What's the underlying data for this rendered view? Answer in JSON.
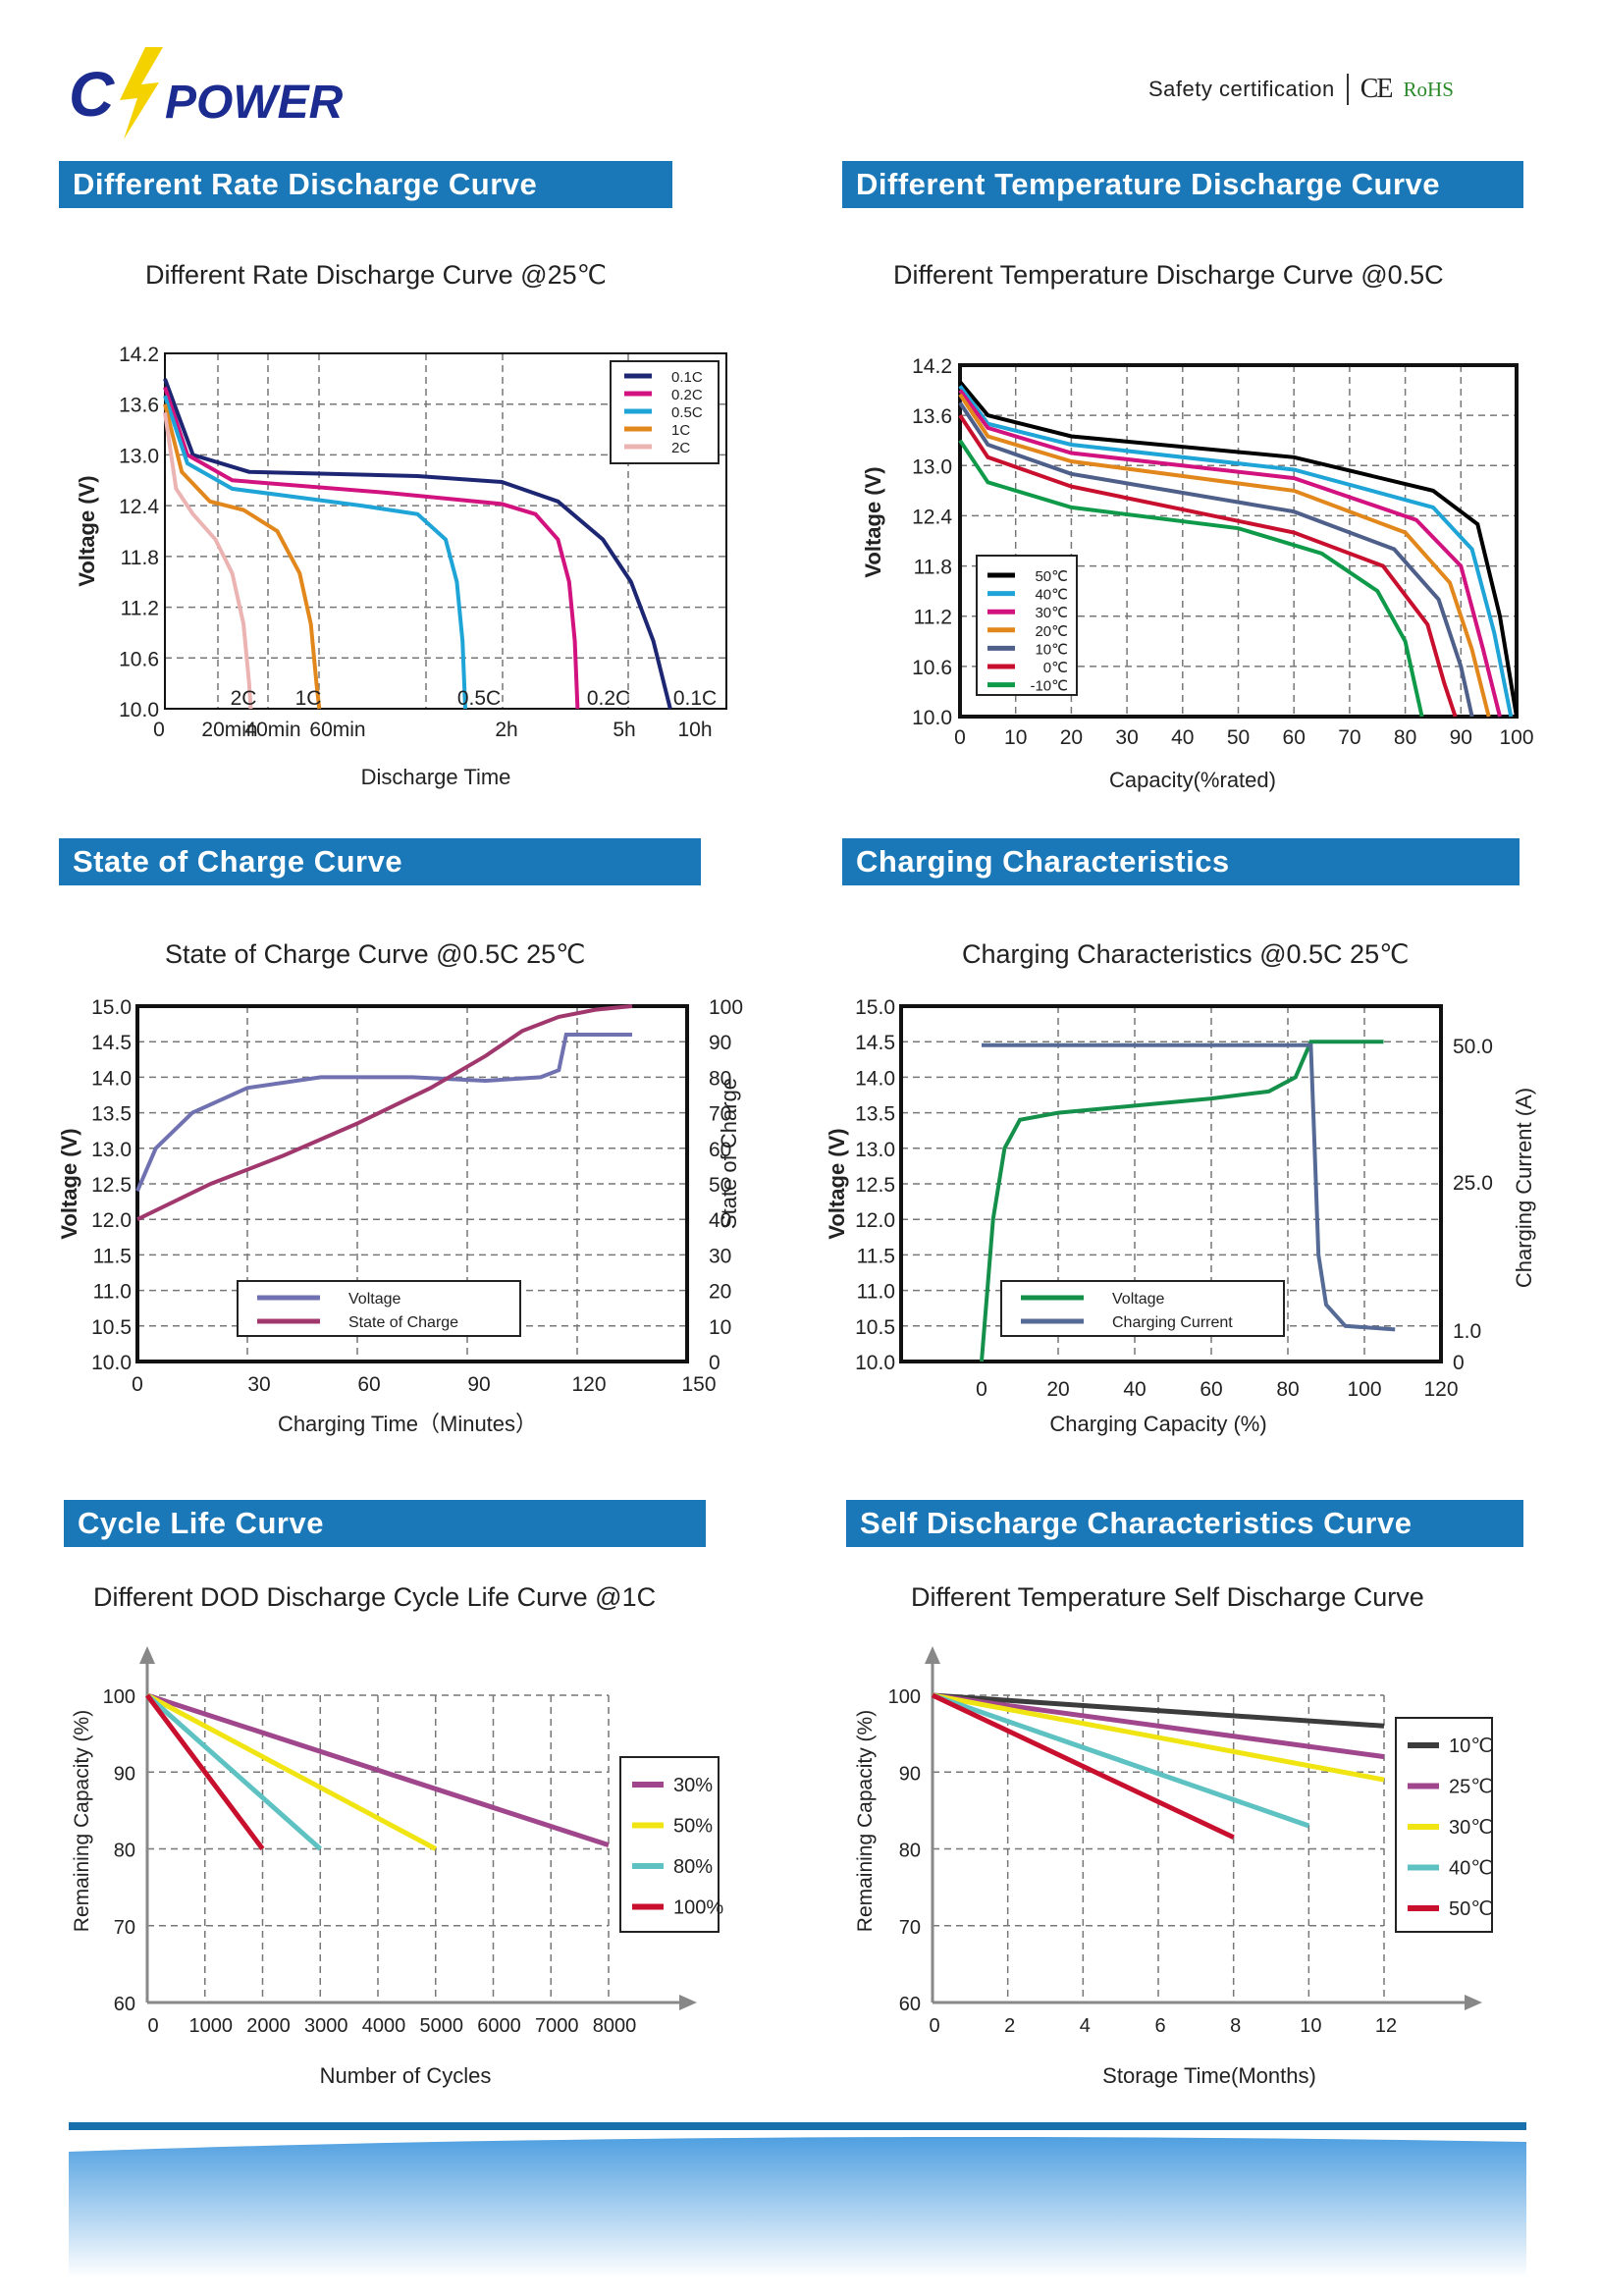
{
  "brand": {
    "logo_text": "POWER",
    "logo_mark": "C"
  },
  "certification": {
    "label": "Safety certification",
    "ce": "CE",
    "rohs": "RoHS"
  },
  "sections": {
    "rate": {
      "header": "Different Rate Discharge Curve",
      "title": "Different Rate Discharge Curve @25℃"
    },
    "temp": {
      "header": "Different Temperature Discharge Curve",
      "title": "Different Temperature Discharge Curve @0.5C"
    },
    "soc": {
      "header": "State of Charge Curve",
      "title": "State of Charge Curve @0.5C 25℃"
    },
    "charging": {
      "header": "Charging Characteristics",
      "title": "Charging Characteristics @0.5C 25℃"
    },
    "cycle": {
      "header": "Cycle Life Curve",
      "title": "Different DOD Discharge Cycle Life Curve @1C"
    },
    "self": {
      "header": "Self Discharge Characteristics Curve",
      "title": "Different Temperature Self Discharge Curve"
    }
  },
  "chart_data": [
    {
      "id": "rate",
      "type": "line",
      "title": "Different Rate Discharge Curve @25℃",
      "xlabel": "Discharge Time",
      "ylabel": "Voltage (V)",
      "ylim": [
        10.0,
        14.2
      ],
      "yticks": [
        "14.2",
        "13.6",
        "13.0",
        "12.4",
        "11.8",
        "11.2",
        "10.6",
        "10.0"
      ],
      "xtick_labels": [
        "0",
        "20min",
        "40min",
        "60min",
        "2h",
        "5h",
        "10h"
      ],
      "legend": "top-right",
      "series": [
        {
          "name": "0.1C",
          "color": "#1d2672",
          "end_label": "0.1C",
          "points": [
            [
              0,
              13.9
            ],
            [
              0.05,
              13.0
            ],
            [
              0.15,
              12.8
            ],
            [
              0.45,
              12.75
            ],
            [
              0.6,
              12.68
            ],
            [
              0.7,
              12.45
            ],
            [
              0.78,
              12.0
            ],
            [
              0.83,
              11.5
            ],
            [
              0.87,
              10.8
            ],
            [
              0.9,
              10.0
            ]
          ]
        },
        {
          "name": "0.2C",
          "color": "#d2127f",
          "end_label": "0.2C",
          "points": [
            [
              0,
              13.8
            ],
            [
              0.04,
              13.0
            ],
            [
              0.12,
              12.7
            ],
            [
              0.4,
              12.55
            ],
            [
              0.6,
              12.42
            ],
            [
              0.66,
              12.3
            ],
            [
              0.7,
              12.0
            ],
            [
              0.72,
              11.5
            ],
            [
              0.73,
              10.8
            ],
            [
              0.735,
              10.0
            ]
          ]
        },
        {
          "name": "0.5C",
          "color": "#1ea4d6",
          "end_label": "0.5C",
          "points": [
            [
              0,
              13.7
            ],
            [
              0.04,
              12.9
            ],
            [
              0.12,
              12.6
            ],
            [
              0.35,
              12.4
            ],
            [
              0.45,
              12.3
            ],
            [
              0.5,
              12.0
            ],
            [
              0.52,
              11.5
            ],
            [
              0.53,
              10.8
            ],
            [
              0.535,
              10.0
            ]
          ]
        },
        {
          "name": "1C",
          "color": "#e2871c",
          "end_label": "1C",
          "points": [
            [
              0,
              13.6
            ],
            [
              0.03,
              12.8
            ],
            [
              0.08,
              12.45
            ],
            [
              0.14,
              12.35
            ],
            [
              0.2,
              12.1
            ],
            [
              0.24,
              11.6
            ],
            [
              0.26,
              11.0
            ],
            [
              0.27,
              10.3
            ],
            [
              0.275,
              10.0
            ]
          ]
        },
        {
          "name": "2C",
          "color": "#ecb3b3",
          "end_label": "2C",
          "points": [
            [
              0,
              13.5
            ],
            [
              0.02,
              12.6
            ],
            [
              0.05,
              12.3
            ],
            [
              0.09,
              12.0
            ],
            [
              0.12,
              11.6
            ],
            [
              0.14,
              11.0
            ],
            [
              0.15,
              10.3
            ],
            [
              0.153,
              10.0
            ]
          ]
        }
      ]
    },
    {
      "id": "temp",
      "type": "line",
      "title": "Different Temperature Discharge Curve @0.5C",
      "xlabel": "Capacity(%rated)",
      "ylabel": "Voltage (V)",
      "ylim": [
        10.0,
        14.2
      ],
      "xlim": [
        0,
        100
      ],
      "yticks": [
        "14.2",
        "13.6",
        "13.0",
        "12.4",
        "11.8",
        "11.2",
        "10.6",
        "10.0"
      ],
      "xticks": [
        "0",
        "10",
        "20",
        "30",
        "40",
        "50",
        "60",
        "70",
        "80",
        "90",
        "100"
      ],
      "legend": "left",
      "series": [
        {
          "name": "50℃",
          "color": "#000000",
          "points": [
            [
              0,
              14.0
            ],
            [
              5,
              13.6
            ],
            [
              20,
              13.35
            ],
            [
              60,
              13.1
            ],
            [
              85,
              12.7
            ],
            [
              93,
              12.3
            ],
            [
              97,
              11.2
            ],
            [
              100,
              10.0
            ]
          ]
        },
        {
          "name": "40℃",
          "color": "#1ea4d6",
          "points": [
            [
              0,
              13.95
            ],
            [
              5,
              13.5
            ],
            [
              20,
              13.25
            ],
            [
              60,
              12.95
            ],
            [
              85,
              12.5
            ],
            [
              92,
              12.0
            ],
            [
              96,
              11.0
            ],
            [
              99,
              10.0
            ]
          ]
        },
        {
          "name": "30℃",
          "color": "#d2127f",
          "points": [
            [
              0,
              13.9
            ],
            [
              5,
              13.45
            ],
            [
              20,
              13.15
            ],
            [
              60,
              12.85
            ],
            [
              82,
              12.35
            ],
            [
              90,
              11.8
            ],
            [
              94,
              10.8
            ],
            [
              97,
              10.0
            ]
          ]
        },
        {
          "name": "20℃",
          "color": "#e2871c",
          "points": [
            [
              0,
              13.85
            ],
            [
              5,
              13.35
            ],
            [
              20,
              13.05
            ],
            [
              60,
              12.7
            ],
            [
              80,
              12.2
            ],
            [
              88,
              11.6
            ],
            [
              92,
              10.8
            ],
            [
              95,
              10.0
            ]
          ]
        },
        {
          "name": "10℃",
          "color": "#4e5f8a",
          "points": [
            [
              0,
              13.75
            ],
            [
              5,
              13.25
            ],
            [
              20,
              12.9
            ],
            [
              60,
              12.45
            ],
            [
              78,
              12.0
            ],
            [
              86,
              11.4
            ],
            [
              90,
              10.6
            ],
            [
              92,
              10.0
            ]
          ]
        },
        {
          "name": "0℃",
          "color": "#c8102e",
          "points": [
            [
              0,
              13.6
            ],
            [
              5,
              13.1
            ],
            [
              20,
              12.75
            ],
            [
              60,
              12.2
            ],
            [
              76,
              11.8
            ],
            [
              84,
              11.1
            ],
            [
              87,
              10.4
            ],
            [
              89,
              10.0
            ]
          ]
        },
        {
          "name": "-10℃",
          "color": "#0f9a4a",
          "points": [
            [
              0,
              13.3
            ],
            [
              5,
              12.8
            ],
            [
              20,
              12.5
            ],
            [
              50,
              12.25
            ],
            [
              65,
              11.95
            ],
            [
              75,
              11.5
            ],
            [
              80,
              10.9
            ],
            [
              83,
              10.0
            ]
          ]
        }
      ]
    },
    {
      "id": "soc",
      "type": "line",
      "title": "State of Charge Curve @0.5C 25℃",
      "xlabel": "Charging Time（Minutes）",
      "ylabel": "Voltage (V)",
      "y2label": "State of Charge",
      "xlim": [
        0,
        150
      ],
      "ylim": [
        10.0,
        15.0
      ],
      "y2lim": [
        0,
        100
      ],
      "xticks": [
        "0",
        "30",
        "60",
        "90",
        "120",
        "150"
      ],
      "yticks": [
        "15.0",
        "14.5",
        "14.0",
        "13.5",
        "13.0",
        "12.5",
        "12.0",
        "11.5",
        "11.0",
        "10.5",
        "10.0"
      ],
      "y2ticks": [
        "100",
        "90",
        "80",
        "70",
        "60",
        "50",
        "40",
        "30",
        "20",
        "10",
        "0"
      ],
      "legend": "bottom-left",
      "series": [
        {
          "name": "Voltage",
          "color": "#7071b0",
          "axis": "left",
          "points": [
            [
              0,
              12.4
            ],
            [
              5,
              13.0
            ],
            [
              15,
              13.5
            ],
            [
              30,
              13.85
            ],
            [
              50,
              14.0
            ],
            [
              75,
              14.0
            ],
            [
              95,
              13.95
            ],
            [
              110,
              14.0
            ],
            [
              115,
              14.1
            ],
            [
              117,
              14.6
            ],
            [
              135,
              14.6
            ]
          ]
        },
        {
          "name": "State of Charge",
          "color": "#a0386e",
          "axis": "right",
          "points": [
            [
              0,
              40
            ],
            [
              20,
              50
            ],
            [
              40,
              58
            ],
            [
              60,
              67
            ],
            [
              80,
              77
            ],
            [
              95,
              86
            ],
            [
              105,
              93
            ],
            [
              115,
              97
            ],
            [
              125,
              99
            ],
            [
              135,
              100
            ]
          ]
        }
      ]
    },
    {
      "id": "charging",
      "type": "line",
      "title": "Charging Characteristics @0.5C 25℃",
      "xlabel": "Charging Capacity (%)",
      "ylabel": "Voltage (V)",
      "y2label": "Charging Current (A)",
      "xlim": [
        0,
        120
      ],
      "ylim": [
        10.0,
        15.0
      ],
      "xticks": [
        "0",
        "20",
        "40",
        "60",
        "80",
        "100",
        "120"
      ],
      "yticks": [
        "15.0",
        "14.5",
        "14.0",
        "13.5",
        "13.0",
        "12.5",
        "12.0",
        "11.5",
        "11.0",
        "10.5",
        "10.0"
      ],
      "y2tick_labels": [
        "50.0",
        "25.0",
        "1.0",
        "0"
      ],
      "legend": "bottom-left",
      "series": [
        {
          "name": "Voltage",
          "color": "#14904a",
          "points": [
            [
              0,
              10.0
            ],
            [
              3,
              12.0
            ],
            [
              6,
              13.0
            ],
            [
              10,
              13.4
            ],
            [
              20,
              13.5
            ],
            [
              40,
              13.6
            ],
            [
              60,
              13.7
            ],
            [
              75,
              13.8
            ],
            [
              82,
              14.0
            ],
            [
              86,
              14.5
            ],
            [
              105,
              14.5
            ]
          ]
        },
        {
          "name": "Charging Current",
          "color": "#556b96",
          "points": [
            [
              0,
              14.45
            ],
            [
              86,
              14.45
            ],
            [
              87,
              13.0
            ],
            [
              88,
              11.5
            ],
            [
              90,
              10.8
            ],
            [
              95,
              10.5
            ],
            [
              108,
              10.45
            ]
          ]
        }
      ]
    },
    {
      "id": "cycle",
      "type": "line",
      "title": "Different DOD Discharge Cycle Life Curve @1C",
      "xlabel": "Number of Cycles",
      "ylabel": "Remaining Capacity (%)",
      "xlim": [
        0,
        8000
      ],
      "ylim": [
        60,
        100
      ],
      "xticks": [
        "0",
        "1000",
        "2000",
        "3000",
        "4000",
        "5000",
        "6000",
        "7000",
        "8000"
      ],
      "yticks": [
        "100",
        "90",
        "80",
        "70",
        "60"
      ],
      "legend": "right",
      "series": [
        {
          "name": "30%",
          "color": "#a0468c",
          "points": [
            [
              0,
              100
            ],
            [
              8000,
              80.5
            ]
          ]
        },
        {
          "name": "50%",
          "color": "#f0e512",
          "points": [
            [
              0,
              100
            ],
            [
              5000,
              80
            ]
          ]
        },
        {
          "name": "80%",
          "color": "#5ec2c2",
          "points": [
            [
              0,
              100
            ],
            [
              3000,
              80
            ]
          ]
        },
        {
          "name": "100%",
          "color": "#c8102e",
          "points": [
            [
              0,
              100
            ],
            [
              2000,
              80
            ]
          ]
        }
      ]
    },
    {
      "id": "self",
      "type": "line",
      "title": "Different Temperature Self Discharge Curve",
      "xlabel": "Storage Time(Months)",
      "ylabel": "Remaining Capacity (%)",
      "xlim": [
        0,
        12
      ],
      "ylim": [
        60,
        100
      ],
      "xticks": [
        "0",
        "2",
        "4",
        "6",
        "8",
        "10",
        "12"
      ],
      "yticks": [
        "100",
        "90",
        "80",
        "70",
        "60"
      ],
      "legend": "right",
      "series": [
        {
          "name": "10℃",
          "color": "#3c3c3c",
          "points": [
            [
              0,
              100
            ],
            [
              12,
              96
            ]
          ]
        },
        {
          "name": "25℃",
          "color": "#a0468c",
          "points": [
            [
              0,
              100
            ],
            [
              12,
              92
            ]
          ]
        },
        {
          "name": "30℃",
          "color": "#f0e512",
          "points": [
            [
              0,
              100
            ],
            [
              12,
              89
            ]
          ]
        },
        {
          "name": "40℃",
          "color": "#5ec2c2",
          "points": [
            [
              0,
              100
            ],
            [
              10,
              83
            ]
          ]
        },
        {
          "name": "50℃",
          "color": "#c8102e",
          "points": [
            [
              0,
              100
            ],
            [
              8,
              81.5
            ]
          ]
        }
      ]
    }
  ]
}
